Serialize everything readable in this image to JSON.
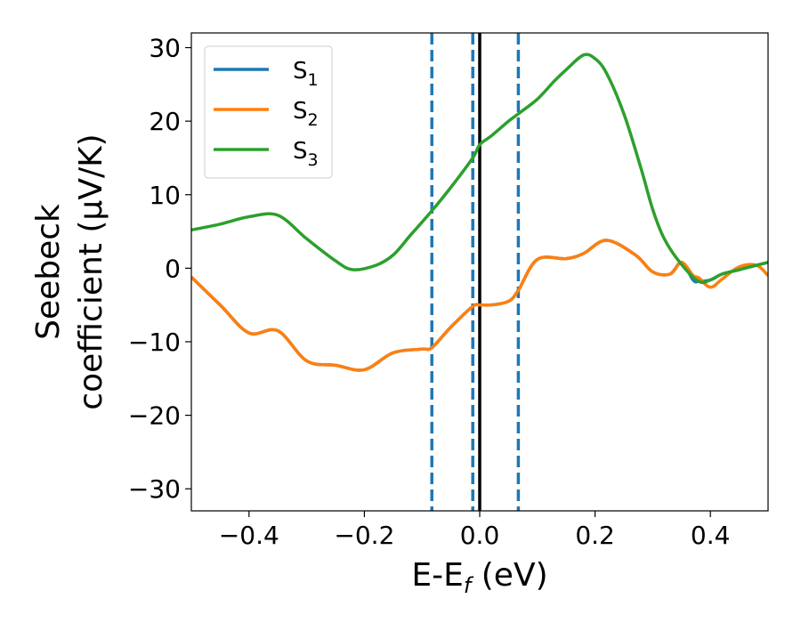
{
  "chart_data": {
    "type": "line",
    "xlabel": "E-E",
    "xlabel_sub": "f",
    "xlabel_unit": " (eV)",
    "ylabel_line1": "Seebeck",
    "ylabel_line2": "coefficient  (μV/K)",
    "xlim": [
      -0.5,
      0.5
    ],
    "ylim": [
      -33,
      32
    ],
    "x_ticks": [
      -0.4,
      -0.2,
      0.0,
      0.2,
      0.4
    ],
    "x_tick_labels": [
      "−0.4",
      "−0.2",
      "0.0",
      "0.2",
      "0.4"
    ],
    "y_ticks": [
      -30,
      -20,
      -10,
      0,
      10,
      20,
      30
    ],
    "y_tick_labels": [
      "−30",
      "−20",
      "−10",
      "0",
      "10",
      "20",
      "30"
    ],
    "grid": false,
    "legend_position": "top-left",
    "vlines": [
      {
        "x": -0.083,
        "style": "dashed",
        "color": "#1f77b4"
      },
      {
        "x": -0.012,
        "style": "dashed",
        "color": "#1f77b4"
      },
      {
        "x": 0.0,
        "style": "solid",
        "color": "#000000"
      },
      {
        "x": 0.067,
        "style": "dashed",
        "color": "#1f77b4"
      }
    ],
    "series": [
      {
        "name": "S",
        "name_sub": "1",
        "color": "#1f77b4",
        "x": [
          -0.5,
          -0.45,
          -0.4,
          -0.35,
          -0.3,
          -0.25,
          -0.2,
          -0.15,
          -0.1,
          -0.083,
          -0.05,
          -0.012,
          0.0,
          0.02,
          0.05,
          0.067,
          0.1,
          0.15,
          0.18,
          0.22,
          0.27,
          0.3,
          0.33,
          0.35,
          0.37,
          0.38,
          0.4,
          0.42,
          0.45,
          0.48,
          0.5
        ],
        "y": [
          -1.2,
          -5.0,
          -8.8,
          -8.5,
          -12.6,
          -13.2,
          -13.8,
          -11.5,
          -11.0,
          -10.8,
          -8.0,
          -5.2,
          -5.0,
          -5.0,
          -4.5,
          -3.0,
          1.2,
          1.3,
          2.0,
          3.8,
          1.8,
          -0.5,
          -0.8,
          0.8,
          -1.6,
          -1.8,
          -1.6,
          -0.8,
          -0.2,
          0.4,
          0.8
        ]
      },
      {
        "name": "S",
        "name_sub": "2",
        "color": "#ff7f0e",
        "x": [
          -0.5,
          -0.45,
          -0.4,
          -0.35,
          -0.3,
          -0.25,
          -0.2,
          -0.15,
          -0.1,
          -0.083,
          -0.05,
          -0.012,
          0.0,
          0.02,
          0.05,
          0.067,
          0.1,
          0.15,
          0.18,
          0.22,
          0.27,
          0.3,
          0.33,
          0.35,
          0.37,
          0.38,
          0.4,
          0.42,
          0.45,
          0.48,
          0.5
        ],
        "y": [
          -1.2,
          -5.0,
          -8.8,
          -8.5,
          -12.6,
          -13.2,
          -13.8,
          -11.5,
          -11.0,
          -10.8,
          -8.0,
          -5.2,
          -5.0,
          -5.0,
          -4.5,
          -3.0,
          1.2,
          1.3,
          2.0,
          3.8,
          1.8,
          -0.5,
          -0.8,
          0.8,
          -1.0,
          -1.3,
          -2.6,
          -1.5,
          0.2,
          0.4,
          -1.0
        ]
      },
      {
        "name": "S",
        "name_sub": "3",
        "color": "#2ca02c",
        "x": [
          -0.5,
          -0.45,
          -0.4,
          -0.35,
          -0.3,
          -0.25,
          -0.22,
          -0.18,
          -0.15,
          -0.12,
          -0.083,
          -0.05,
          -0.012,
          0.0,
          0.02,
          0.05,
          0.067,
          0.1,
          0.13,
          0.15,
          0.18,
          0.2,
          0.22,
          0.25,
          0.28,
          0.3,
          0.32,
          0.35,
          0.38,
          0.4,
          0.42,
          0.45,
          0.48,
          0.5
        ],
        "y": [
          5.2,
          6.0,
          7.0,
          7.2,
          4.0,
          1.0,
          -0.2,
          0.4,
          1.8,
          4.5,
          7.8,
          11.0,
          15.0,
          16.8,
          18.0,
          20.0,
          21.0,
          23.0,
          25.5,
          27.0,
          29.0,
          28.5,
          26.5,
          21.0,
          13.5,
          8.0,
          4.0,
          0.5,
          -1.8,
          -1.6,
          -0.8,
          -0.2,
          0.4,
          0.8
        ]
      }
    ]
  }
}
